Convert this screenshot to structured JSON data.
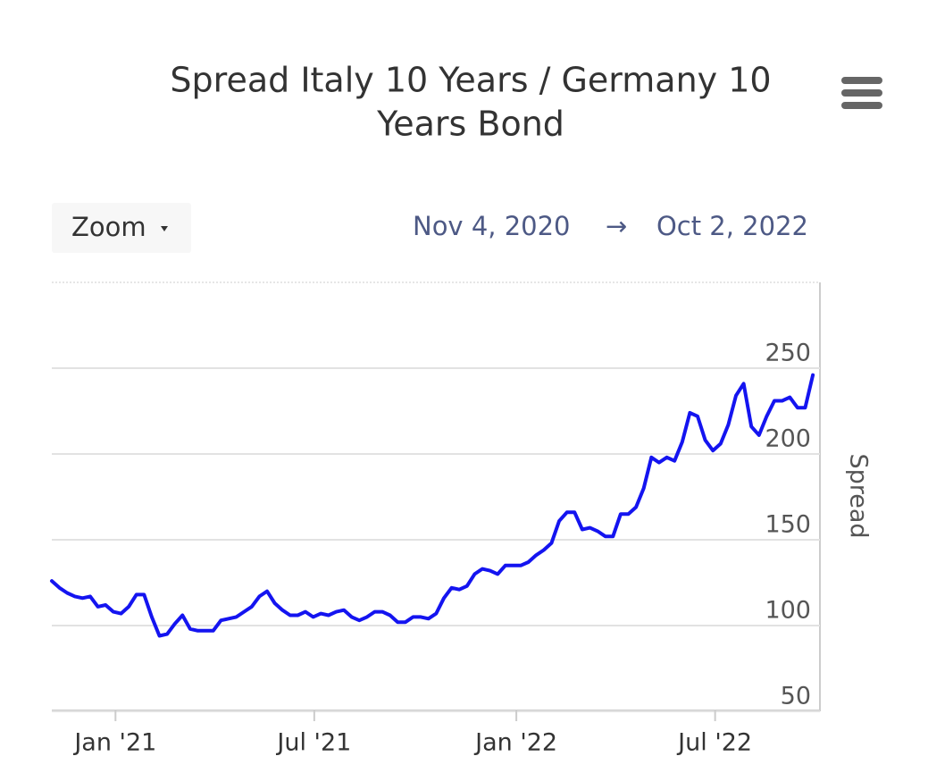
{
  "chart_data": {
    "type": "line",
    "title": [
      "Spread Italy 10 Years / Germany 10",
      "Years Bond"
    ],
    "zoom_label": "Zoom",
    "range": {
      "from": "Nov 4, 2020",
      "arrow": "→",
      "to": "Oct 2, 2022"
    },
    "y_axis_label": "Spread",
    "x": [
      "2020-11-04",
      "2020-11-11",
      "2020-11-18",
      "2020-11-25",
      "2020-12-02",
      "2020-12-09",
      "2020-12-16",
      "2020-12-23",
      "2020-12-30",
      "2021-01-06",
      "2021-01-13",
      "2021-01-20",
      "2021-01-27",
      "2021-02-03",
      "2021-02-10",
      "2021-02-17",
      "2021-02-24",
      "2021-03-03",
      "2021-03-10",
      "2021-03-17",
      "2021-03-24",
      "2021-03-31",
      "2021-04-07",
      "2021-04-14",
      "2021-04-21",
      "2021-04-28",
      "2021-05-05",
      "2021-05-12",
      "2021-05-19",
      "2021-05-26",
      "2021-06-02",
      "2021-06-09",
      "2021-06-16",
      "2021-06-23",
      "2021-06-30",
      "2021-07-07",
      "2021-07-14",
      "2021-07-21",
      "2021-07-28",
      "2021-08-04",
      "2021-08-11",
      "2021-08-18",
      "2021-08-25",
      "2021-09-01",
      "2021-09-08",
      "2021-09-15",
      "2021-09-22",
      "2021-09-29",
      "2021-10-06",
      "2021-10-13",
      "2021-10-20",
      "2021-10-27",
      "2021-11-03",
      "2021-11-10",
      "2021-11-17",
      "2021-11-24",
      "2021-12-01",
      "2021-12-08",
      "2021-12-15",
      "2021-12-22",
      "2021-12-29",
      "2022-01-05",
      "2022-01-12",
      "2022-01-19",
      "2022-01-26",
      "2022-02-02",
      "2022-02-09",
      "2022-02-16",
      "2022-02-23",
      "2022-03-02",
      "2022-03-09",
      "2022-03-16",
      "2022-03-23",
      "2022-03-30",
      "2022-04-06",
      "2022-04-13",
      "2022-04-20",
      "2022-04-27",
      "2022-05-04",
      "2022-05-11",
      "2022-05-18",
      "2022-05-25",
      "2022-06-01",
      "2022-06-08",
      "2022-06-15",
      "2022-06-22",
      "2022-06-29",
      "2022-07-06",
      "2022-07-13",
      "2022-07-20",
      "2022-07-27",
      "2022-08-03",
      "2022-08-10",
      "2022-08-17",
      "2022-08-24",
      "2022-08-31",
      "2022-09-07",
      "2022-09-14",
      "2022-09-21",
      "2022-09-28"
    ],
    "series": [
      {
        "name": "Spread",
        "color": "#1414f0",
        "values": [
          126,
          122,
          119,
          117,
          116,
          117,
          111,
          112,
          108,
          107,
          111,
          118,
          118,
          105,
          94,
          95,
          101,
          106,
          98,
          97,
          97,
          97,
          103,
          104,
          105,
          108,
          111,
          117,
          120,
          113,
          109,
          106,
          106,
          108,
          105,
          107,
          106,
          108,
          109,
          105,
          103,
          105,
          108,
          108,
          106,
          102,
          102,
          105,
          105,
          104,
          107,
          116,
          122,
          121,
          123,
          130,
          133,
          132,
          130,
          135,
          135,
          135,
          137,
          141,
          144,
          148,
          161,
          166,
          166,
          156,
          157,
          155,
          152,
          152,
          165,
          165,
          169,
          180,
          198,
          195,
          198,
          196,
          207,
          224,
          222,
          208,
          202,
          206,
          217,
          234,
          241,
          216,
          211,
          222,
          231,
          231,
          233,
          227,
          227,
          246
        ]
      }
    ],
    "xlim": [
      "2020-11-04",
      "2022-10-02"
    ],
    "xticks": [
      {
        "value": "2021-01-01",
        "label": "Jan '21"
      },
      {
        "value": "2021-07-01",
        "label": "Jul '21"
      },
      {
        "value": "2022-01-01",
        "label": "Jan '22"
      },
      {
        "value": "2022-07-01",
        "label": "Jul '22"
      }
    ],
    "ylim": [
      50,
      300
    ],
    "yticks": [
      50,
      100,
      150,
      200,
      250
    ],
    "grid": true
  }
}
